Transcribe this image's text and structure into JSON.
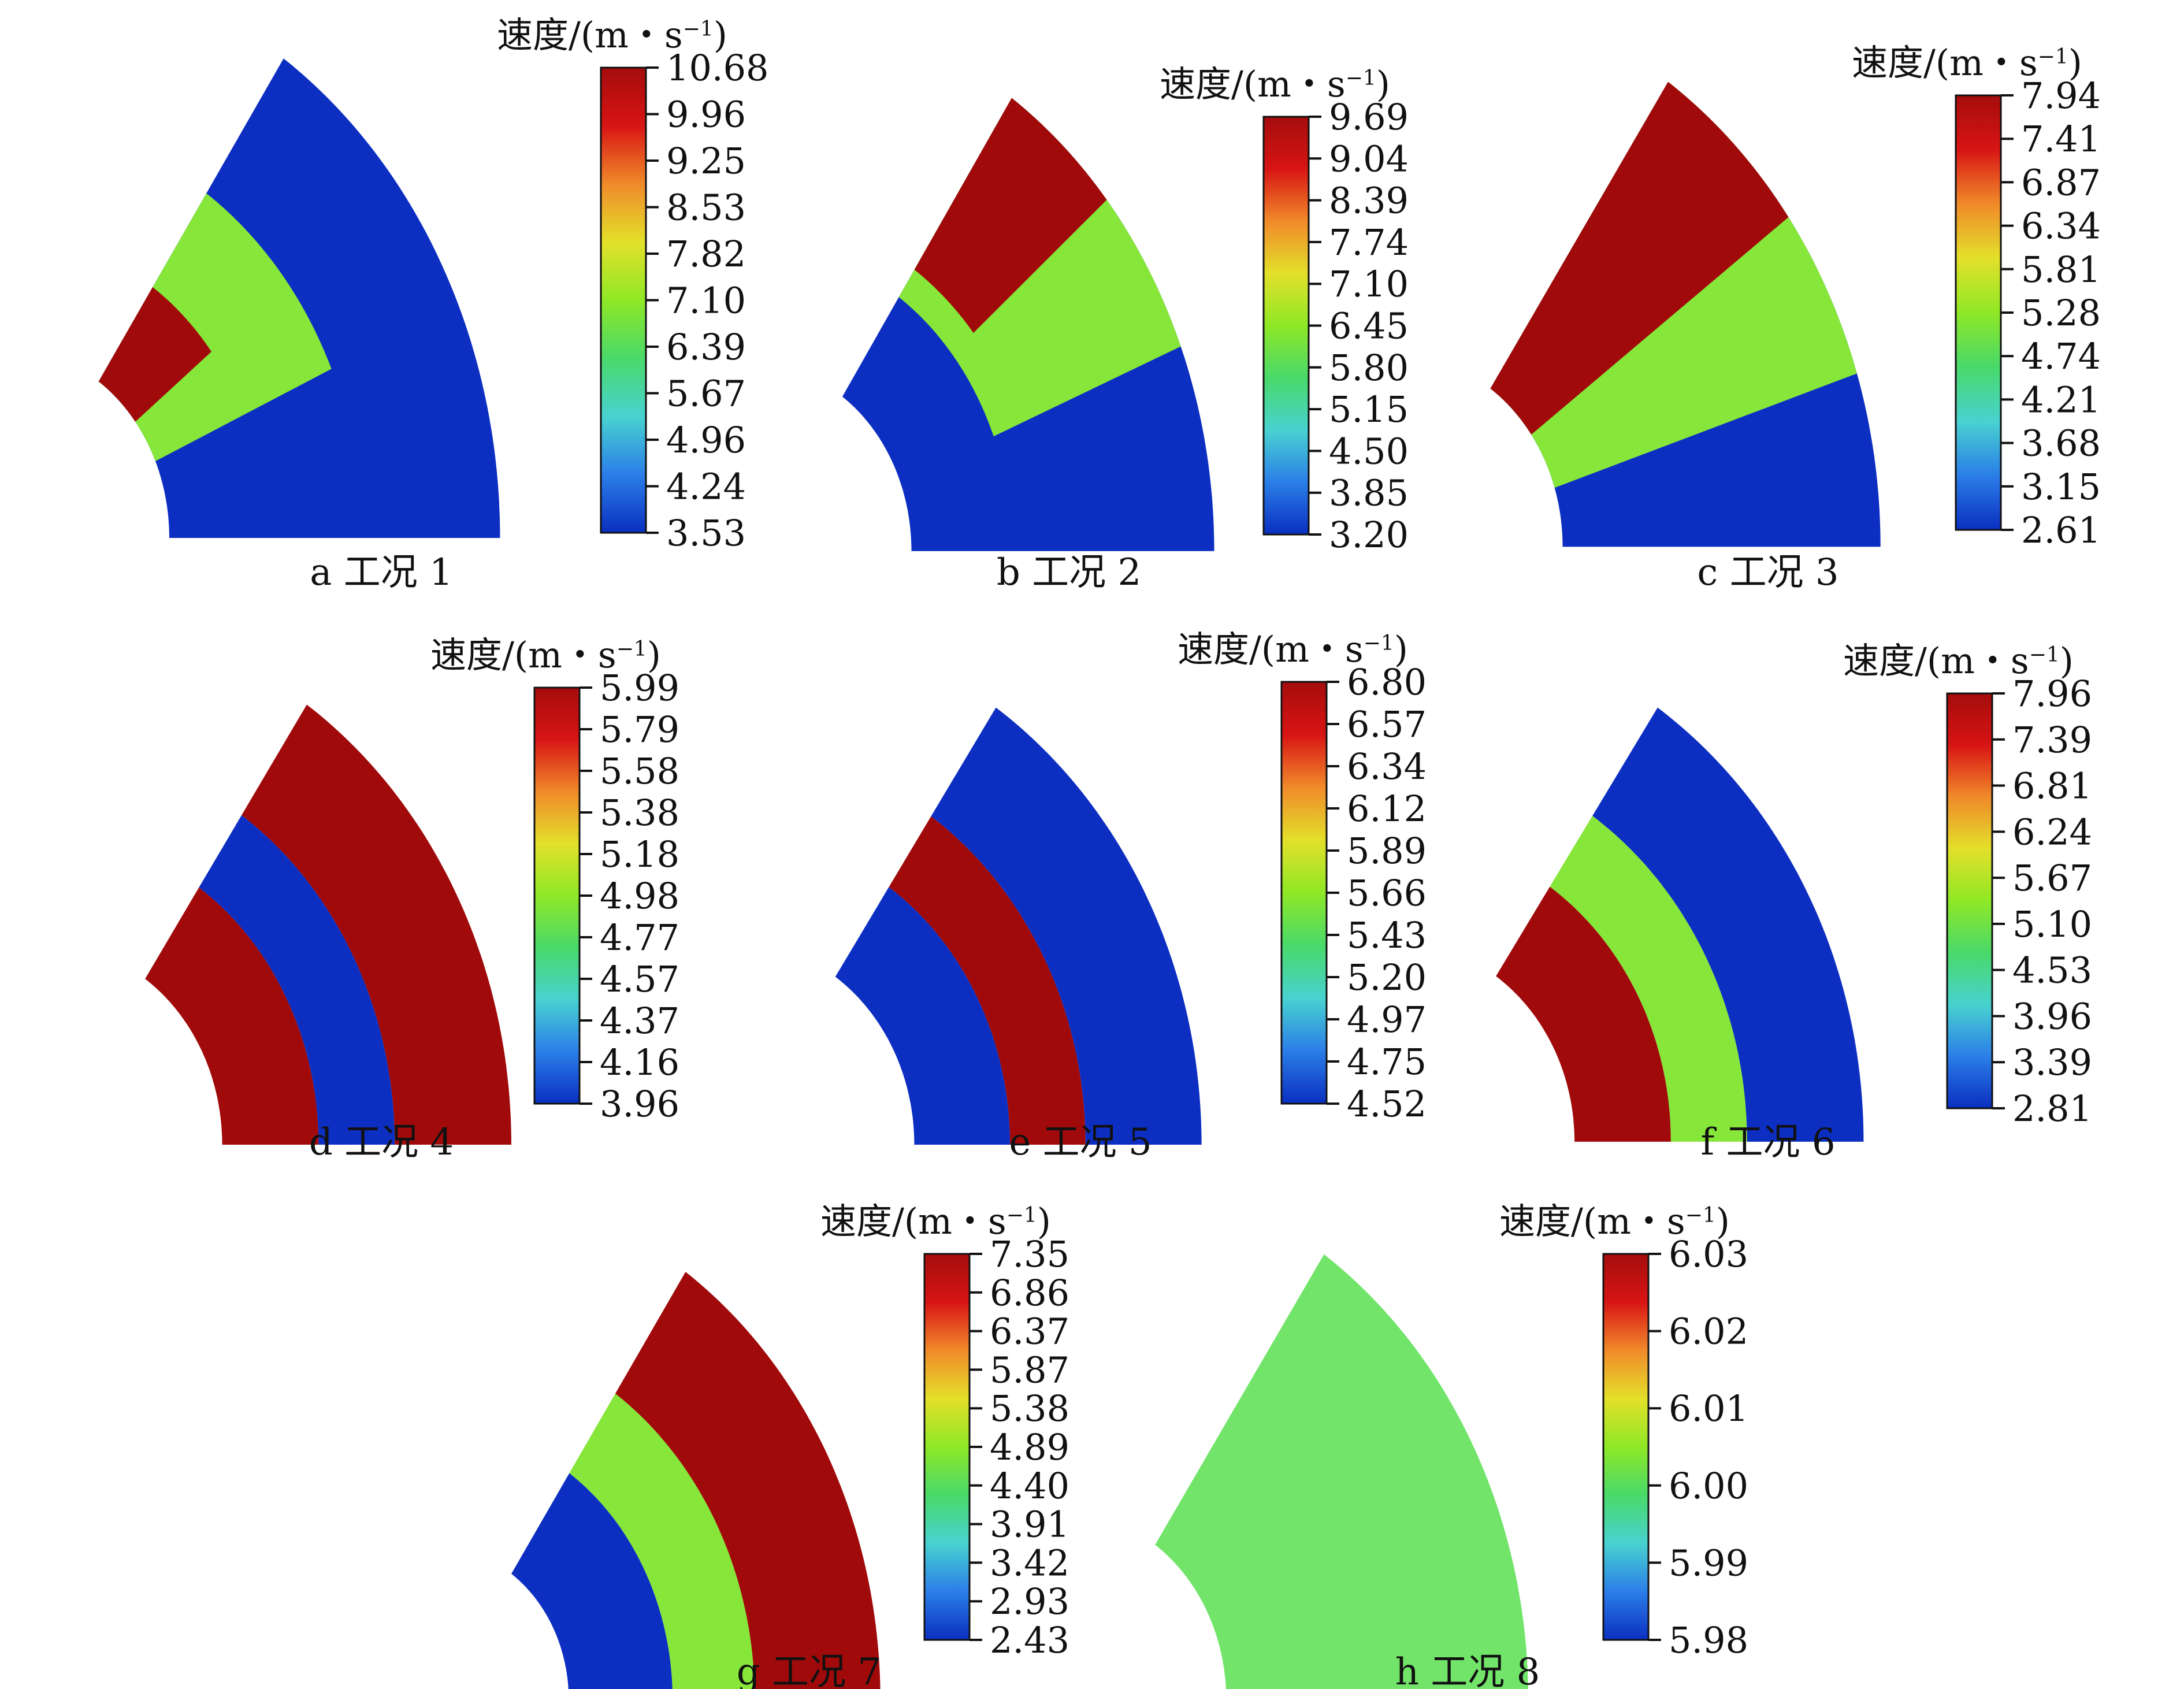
{
  "colormap": [
    "#0a2fc0",
    "#2b7ee8",
    "#48d2d0",
    "#49d96a",
    "#8fe826",
    "#e3e02a",
    "#f08a2a",
    "#d81414",
    "#a50c0c"
  ],
  "panel_colors": {
    "blue": "#0c2fc2",
    "green": "#86e63a",
    "red": "#a00a0a",
    "light_green": "#72e46a"
  },
  "panels": [
    {
      "caption": "a  工况 1",
      "legend_title": "速度/(m・s",
      "legend_sup": "−1",
      "legend_close": ")",
      "ticks": [
        "10.68",
        "9.96",
        "9.25",
        "8.53",
        "7.82",
        "7.10",
        "6.39",
        "5.67",
        "4.96",
        "4.24",
        "3.53"
      ]
    },
    {
      "caption": "b  工况 2",
      "legend_title": "速度/(m・s",
      "legend_sup": "−1",
      "legend_close": ")",
      "ticks": [
        "9.69",
        "9.04",
        "8.39",
        "7.74",
        "7.10",
        "6.45",
        "5.80",
        "5.15",
        "4.50",
        "3.85",
        "3.20"
      ]
    },
    {
      "caption": "c  工况 3",
      "legend_title": "速度/(m・s",
      "legend_sup": "−1",
      "legend_close": ")",
      "ticks": [
        "7.94",
        "7.41",
        "6.87",
        "6.34",
        "5.81",
        "5.28",
        "4.74",
        "4.21",
        "3.68",
        "3.15",
        "2.61"
      ]
    },
    {
      "caption": "d  工况 4",
      "legend_title": "速度/(m・s",
      "legend_sup": "−1",
      "legend_close": ")",
      "ticks": [
        "5.99",
        "5.79",
        "5.58",
        "5.38",
        "5.18",
        "4.98",
        "4.77",
        "4.57",
        "4.37",
        "4.16",
        "3.96"
      ]
    },
    {
      "caption": "e  工况 5",
      "legend_title": "速度/(m・s",
      "legend_sup": "−1",
      "legend_close": ")",
      "ticks": [
        "6.80",
        "6.57",
        "6.34",
        "6.12",
        "5.89",
        "5.66",
        "5.43",
        "5.20",
        "4.97",
        "4.75",
        "4.52"
      ]
    },
    {
      "caption": "f  工况 6",
      "legend_title": "速度/(m・s",
      "legend_sup": "−1",
      "legend_close": ")",
      "ticks": [
        "7.96",
        "7.39",
        "6.81",
        "6.24",
        "5.67",
        "5.10",
        "4.53",
        "3.96",
        "3.39",
        "2.81"
      ]
    },
    {
      "caption": "g  工况 7",
      "legend_title": "速度/(m・s",
      "legend_sup": "−1",
      "legend_close": ")",
      "ticks": [
        "7.35",
        "6.86",
        "6.37",
        "5.87",
        "5.38",
        "4.89",
        "4.40",
        "3.91",
        "3.42",
        "2.93",
        "2.43"
      ]
    },
    {
      "caption": "h  工况 8",
      "legend_title": "速度/(m・s",
      "legend_sup": "−1",
      "legend_close": ")",
      "ticks": [
        "6.03",
        "6.02",
        "6.01",
        "6.00",
        "5.99",
        "5.98"
      ]
    }
  ]
}
